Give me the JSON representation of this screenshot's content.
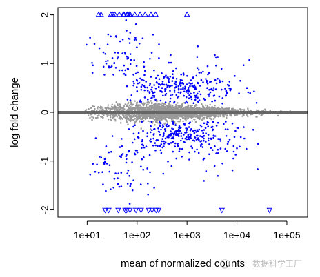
{
  "chart_data": {
    "type": "scatter",
    "title": "",
    "xlabel": "mean of normalized counts",
    "ylabel": "log fold change",
    "x_scale": "log10",
    "xlim": [
      2.6,
      260000
    ],
    "ylim": [
      -2.15,
      2.15
    ],
    "x_ticks": [
      10,
      100,
      1000,
      10000,
      100000
    ],
    "x_tick_labels": [
      "1e+01",
      "1e+02",
      "1e+03",
      "1e+04",
      "1e+05"
    ],
    "y_ticks": [
      -2,
      -1,
      0,
      1,
      2
    ],
    "y_tick_labels": [
      "-2",
      "-1",
      "0",
      "1",
      "2"
    ],
    "reference_line": 0,
    "grid": false,
    "colors": {
      "not_significant": "#999999",
      "significant": "#0000ff",
      "reference_line": "#666666"
    },
    "clipped_points_marker": "open triangle (up above y=2, down below y=-2)",
    "series": [
      {
        "significant": false,
        "cloud": [
          {
            "log10_x": 1.0,
            "y_sd": 0.05
          },
          {
            "log10_x": 2.0,
            "y_sd": 0.09
          },
          {
            "log10_x": 3.0,
            "y_sd": 0.07
          },
          {
            "log10_x": 4.0,
            "y_sd": 0.04
          },
          {
            "log10_x": 5.0,
            "y_sd": 0.03
          }
        ]
      },
      {
        "significant": true,
        "clipped_up_x": [
          17,
          19,
          30,
          33,
          36,
          44,
          53,
          55,
          63,
          65,
          70,
          73,
          90,
          115,
          145,
          190,
          235,
          1000
        ],
        "clipped_down_x": [
          23,
          27,
          42,
          58,
          62,
          72,
          95,
          120,
          170,
          200,
          240,
          270,
          5000,
          45000
        ]
      }
    ]
  },
  "watermark": {
    "text": "数据科学工厂"
  }
}
